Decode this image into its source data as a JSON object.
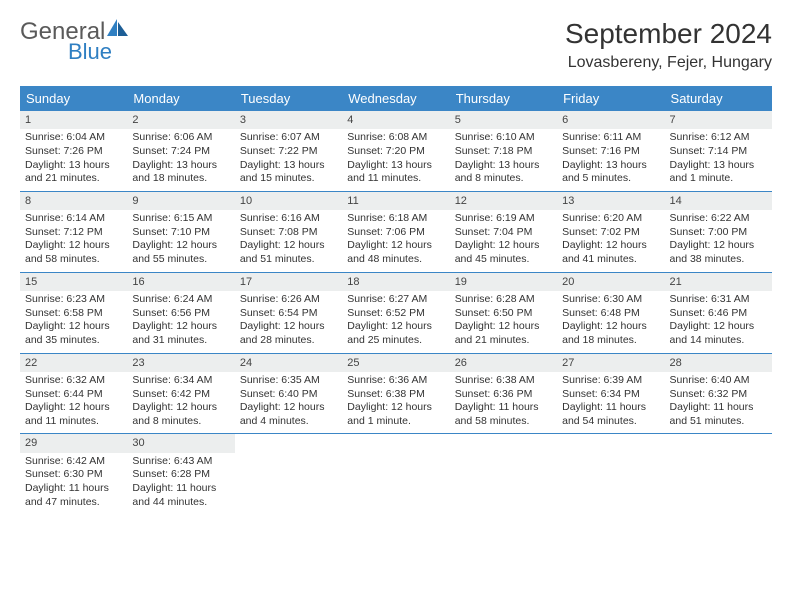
{
  "logo": {
    "text1": "General",
    "text2": "Blue"
  },
  "title": "September 2024",
  "location": "Lovasbereny, Fejer, Hungary",
  "dayNames": [
    "Sunday",
    "Monday",
    "Tuesday",
    "Wednesday",
    "Thursday",
    "Friday",
    "Saturday"
  ],
  "colors": {
    "headerBar": "#3b86c6",
    "dayNumBg": "#eceeee",
    "logoGray": "#5a5a5a",
    "logoBlue": "#2f7fc2"
  },
  "weeks": [
    [
      {
        "n": "1",
        "sr": "Sunrise: 6:04 AM",
        "ss": "Sunset: 7:26 PM",
        "d1": "Daylight: 13 hours",
        "d2": "and 21 minutes."
      },
      {
        "n": "2",
        "sr": "Sunrise: 6:06 AM",
        "ss": "Sunset: 7:24 PM",
        "d1": "Daylight: 13 hours",
        "d2": "and 18 minutes."
      },
      {
        "n": "3",
        "sr": "Sunrise: 6:07 AM",
        "ss": "Sunset: 7:22 PM",
        "d1": "Daylight: 13 hours",
        "d2": "and 15 minutes."
      },
      {
        "n": "4",
        "sr": "Sunrise: 6:08 AM",
        "ss": "Sunset: 7:20 PM",
        "d1": "Daylight: 13 hours",
        "d2": "and 11 minutes."
      },
      {
        "n": "5",
        "sr": "Sunrise: 6:10 AM",
        "ss": "Sunset: 7:18 PM",
        "d1": "Daylight: 13 hours",
        "d2": "and 8 minutes."
      },
      {
        "n": "6",
        "sr": "Sunrise: 6:11 AM",
        "ss": "Sunset: 7:16 PM",
        "d1": "Daylight: 13 hours",
        "d2": "and 5 minutes."
      },
      {
        "n": "7",
        "sr": "Sunrise: 6:12 AM",
        "ss": "Sunset: 7:14 PM",
        "d1": "Daylight: 13 hours",
        "d2": "and 1 minute."
      }
    ],
    [
      {
        "n": "8",
        "sr": "Sunrise: 6:14 AM",
        "ss": "Sunset: 7:12 PM",
        "d1": "Daylight: 12 hours",
        "d2": "and 58 minutes."
      },
      {
        "n": "9",
        "sr": "Sunrise: 6:15 AM",
        "ss": "Sunset: 7:10 PM",
        "d1": "Daylight: 12 hours",
        "d2": "and 55 minutes."
      },
      {
        "n": "10",
        "sr": "Sunrise: 6:16 AM",
        "ss": "Sunset: 7:08 PM",
        "d1": "Daylight: 12 hours",
        "d2": "and 51 minutes."
      },
      {
        "n": "11",
        "sr": "Sunrise: 6:18 AM",
        "ss": "Sunset: 7:06 PM",
        "d1": "Daylight: 12 hours",
        "d2": "and 48 minutes."
      },
      {
        "n": "12",
        "sr": "Sunrise: 6:19 AM",
        "ss": "Sunset: 7:04 PM",
        "d1": "Daylight: 12 hours",
        "d2": "and 45 minutes."
      },
      {
        "n": "13",
        "sr": "Sunrise: 6:20 AM",
        "ss": "Sunset: 7:02 PM",
        "d1": "Daylight: 12 hours",
        "d2": "and 41 minutes."
      },
      {
        "n": "14",
        "sr": "Sunrise: 6:22 AM",
        "ss": "Sunset: 7:00 PM",
        "d1": "Daylight: 12 hours",
        "d2": "and 38 minutes."
      }
    ],
    [
      {
        "n": "15",
        "sr": "Sunrise: 6:23 AM",
        "ss": "Sunset: 6:58 PM",
        "d1": "Daylight: 12 hours",
        "d2": "and 35 minutes."
      },
      {
        "n": "16",
        "sr": "Sunrise: 6:24 AM",
        "ss": "Sunset: 6:56 PM",
        "d1": "Daylight: 12 hours",
        "d2": "and 31 minutes."
      },
      {
        "n": "17",
        "sr": "Sunrise: 6:26 AM",
        "ss": "Sunset: 6:54 PM",
        "d1": "Daylight: 12 hours",
        "d2": "and 28 minutes."
      },
      {
        "n": "18",
        "sr": "Sunrise: 6:27 AM",
        "ss": "Sunset: 6:52 PM",
        "d1": "Daylight: 12 hours",
        "d2": "and 25 minutes."
      },
      {
        "n": "19",
        "sr": "Sunrise: 6:28 AM",
        "ss": "Sunset: 6:50 PM",
        "d1": "Daylight: 12 hours",
        "d2": "and 21 minutes."
      },
      {
        "n": "20",
        "sr": "Sunrise: 6:30 AM",
        "ss": "Sunset: 6:48 PM",
        "d1": "Daylight: 12 hours",
        "d2": "and 18 minutes."
      },
      {
        "n": "21",
        "sr": "Sunrise: 6:31 AM",
        "ss": "Sunset: 6:46 PM",
        "d1": "Daylight: 12 hours",
        "d2": "and 14 minutes."
      }
    ],
    [
      {
        "n": "22",
        "sr": "Sunrise: 6:32 AM",
        "ss": "Sunset: 6:44 PM",
        "d1": "Daylight: 12 hours",
        "d2": "and 11 minutes."
      },
      {
        "n": "23",
        "sr": "Sunrise: 6:34 AM",
        "ss": "Sunset: 6:42 PM",
        "d1": "Daylight: 12 hours",
        "d2": "and 8 minutes."
      },
      {
        "n": "24",
        "sr": "Sunrise: 6:35 AM",
        "ss": "Sunset: 6:40 PM",
        "d1": "Daylight: 12 hours",
        "d2": "and 4 minutes."
      },
      {
        "n": "25",
        "sr": "Sunrise: 6:36 AM",
        "ss": "Sunset: 6:38 PM",
        "d1": "Daylight: 12 hours",
        "d2": "and 1 minute."
      },
      {
        "n": "26",
        "sr": "Sunrise: 6:38 AM",
        "ss": "Sunset: 6:36 PM",
        "d1": "Daylight: 11 hours",
        "d2": "and 58 minutes."
      },
      {
        "n": "27",
        "sr": "Sunrise: 6:39 AM",
        "ss": "Sunset: 6:34 PM",
        "d1": "Daylight: 11 hours",
        "d2": "and 54 minutes."
      },
      {
        "n": "28",
        "sr": "Sunrise: 6:40 AM",
        "ss": "Sunset: 6:32 PM",
        "d1": "Daylight: 11 hours",
        "d2": "and 51 minutes."
      }
    ],
    [
      {
        "n": "29",
        "sr": "Sunrise: 6:42 AM",
        "ss": "Sunset: 6:30 PM",
        "d1": "Daylight: 11 hours",
        "d2": "and 47 minutes."
      },
      {
        "n": "30",
        "sr": "Sunrise: 6:43 AM",
        "ss": "Sunset: 6:28 PM",
        "d1": "Daylight: 11 hours",
        "d2": "and 44 minutes."
      },
      null,
      null,
      null,
      null,
      null
    ]
  ]
}
